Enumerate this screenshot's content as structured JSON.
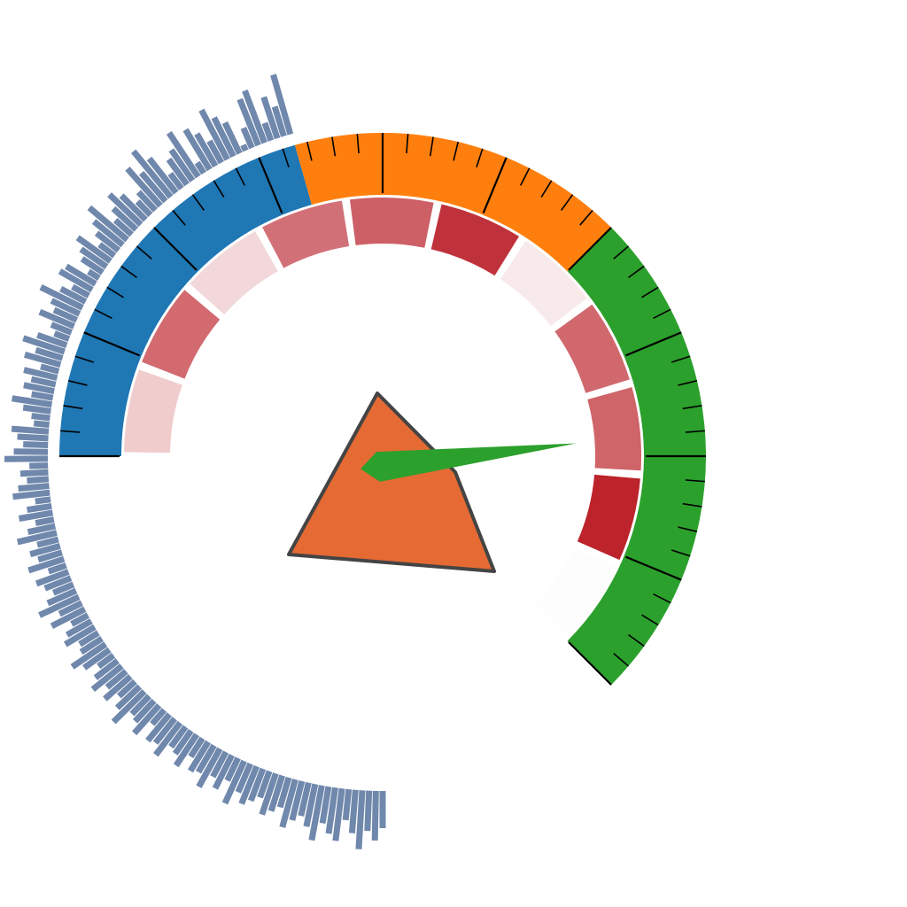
{
  "chart_data": {
    "type": "gauge",
    "scale": {
      "start_angle_deg": -90,
      "end_angle_deg": 135
    },
    "outer_bands": [
      {
        "from": 0,
        "to": 0.33,
        "color": "#1f77b4"
      },
      {
        "from": 0.33,
        "to": 0.6,
        "color": "#ff7f0e"
      },
      {
        "from": 0.6,
        "to": 1.0,
        "color": "#2ca02c"
      }
    ],
    "ticks": {
      "major_count": 10,
      "minor_per_major": 5,
      "color": "#000000"
    },
    "inner_segments": [
      {
        "value": 0.22,
        "color": "#f0cccd"
      },
      {
        "value": 0.68,
        "color": "#d26a70"
      },
      {
        "value": 0.18,
        "color": "#f2d8da"
      },
      {
        "value": 0.72,
        "color": "#d27077"
      },
      {
        "value": 0.75,
        "color": "#cd5f66"
      },
      {
        "value": 0.95,
        "color": "#c0323b"
      },
      {
        "value": 0.07,
        "color": "#f8eaea"
      },
      {
        "value": 0.72,
        "color": "#d0686e"
      },
      {
        "value": 0.74,
        "color": "#cf6469"
      },
      {
        "value": 1.0,
        "color": "#bc232b"
      },
      {
        "value": 0.0,
        "color": "#fdfdfd"
      }
    ],
    "needle": {
      "value": 0.77,
      "color": "#2ca02c"
    },
    "center_polygon": {
      "fill": "#e56a33",
      "stroke": "#444444"
    },
    "radial_histogram": {
      "color": "#7088ac",
      "start_angle_deg": -16,
      "end_angle_deg": -180,
      "values": [
        1.0,
        0.5,
        0.7,
        0.3,
        0.9,
        0.8,
        0.35,
        0.1,
        0.55,
        0.7,
        0.9,
        0.4,
        0.6,
        0.75,
        0.2,
        0.85,
        0.6,
        0.5,
        0.3,
        0.7,
        0.95,
        0.6,
        0.8,
        0.4,
        0.3,
        0.55,
        0.7,
        0.5,
        0.35,
        0.8,
        0.6,
        0.45,
        0.3,
        0.65,
        0.5,
        0.4,
        0.2,
        0.55,
        0.6,
        0.3,
        0.45,
        0.75,
        0.5,
        0.4,
        0.6,
        0.35,
        0.25,
        0.5,
        0.7,
        0.45,
        0.6,
        0.3,
        0.55,
        0.4,
        0.5,
        0.35,
        0.65,
        0.45,
        0.3,
        0.25,
        0.6,
        0.5,
        0.4,
        0.55,
        0.7,
        0.3,
        0.45,
        0.35,
        0.5,
        0.6,
        0.25,
        0.4,
        0.55,
        0.3,
        0.45,
        0.65,
        0.35,
        0.5,
        0.4,
        0.6,
        0.3,
        0.55,
        0.45,
        0.35,
        0.5,
        0.7,
        0.4,
        0.6,
        0.3,
        0.45,
        0.55,
        0.35,
        0.4,
        0.65,
        0.5,
        0.3,
        0.45,
        0.6,
        0.4,
        0.55,
        0.35,
        0.5,
        0.7,
        0.4,
        0.45,
        0.6,
        0.3,
        0.55,
        0.5,
        0.65,
        0.4,
        0.45,
        0.6,
        0.35,
        0.55,
        0.5,
        0.7,
        0.45,
        0.6,
        0.4,
        0.75,
        0.5,
        0.65,
        0.55,
        0.45,
        0.7,
        0.6,
        0.5,
        0.8,
        0.65,
        0.55,
        0.7,
        0.9,
        0.6,
        0.75,
        0.85,
        0.5,
        0.7,
        0.95,
        0.65,
        0.8,
        0.6
      ]
    }
  }
}
